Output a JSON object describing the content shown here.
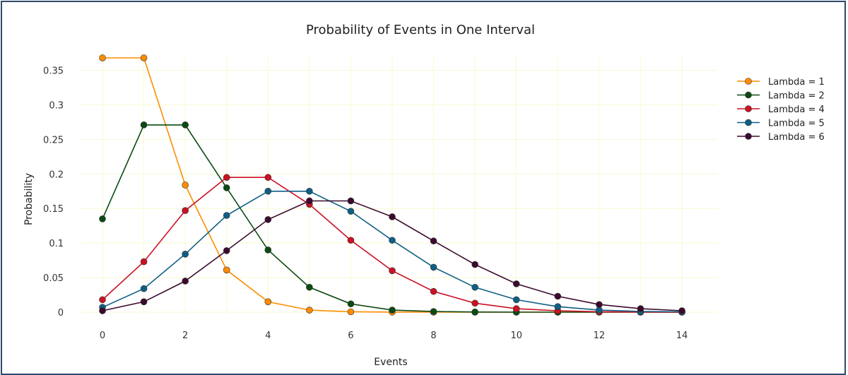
{
  "chart_data": {
    "type": "line",
    "title": "Probability of Events in One Interval",
    "xlabel": "Events",
    "ylabel": "Probability",
    "x": [
      0,
      1,
      2,
      3,
      4,
      5,
      6,
      7,
      8,
      9,
      10,
      11,
      12,
      13,
      14
    ],
    "xlim": [
      0,
      14
    ],
    "ylim": [
      0,
      0.37
    ],
    "x_ticks": [
      "0",
      "2",
      "4",
      "6",
      "8",
      "10",
      "12",
      "14"
    ],
    "x_tick_values": [
      0,
      2,
      4,
      6,
      8,
      10,
      12,
      14
    ],
    "y_ticks": [
      "0",
      "0.05",
      "0.1",
      "0.15",
      "0.2",
      "0.25",
      "0.3",
      "0.35"
    ],
    "y_tick_values": [
      0,
      0.05,
      0.1,
      0.15,
      0.2,
      0.25,
      0.3,
      0.35
    ],
    "grid": true,
    "legend_position": "top-right",
    "series": [
      {
        "name": "Lambda = 1",
        "color": "#ff8c00",
        "values": [
          0.368,
          0.368,
          0.184,
          0.061,
          0.015,
          0.003,
          0.0005,
          0.0001,
          0,
          0,
          0,
          0,
          0,
          0,
          0
        ]
      },
      {
        "name": "Lambda = 2",
        "color": "#0b4a12",
        "values": [
          0.135,
          0.271,
          0.271,
          0.18,
          0.09,
          0.036,
          0.012,
          0.003,
          0.0009,
          0.0002,
          0,
          0,
          0,
          0,
          0
        ]
      },
      {
        "name": "Lambda = 4",
        "color": "#cc1122",
        "values": [
          0.018,
          0.073,
          0.147,
          0.195,
          0.195,
          0.156,
          0.104,
          0.06,
          0.03,
          0.013,
          0.005,
          0.002,
          0.0006,
          0.0002,
          0
        ]
      },
      {
        "name": "Lambda = 5",
        "color": "#0f5f85",
        "values": [
          0.007,
          0.034,
          0.084,
          0.14,
          0.175,
          0.175,
          0.146,
          0.104,
          0.065,
          0.036,
          0.018,
          0.008,
          0.003,
          0.001,
          0.0005
        ]
      },
      {
        "name": "Lambda = 6",
        "color": "#3b0a2e",
        "values": [
          0.002,
          0.015,
          0.045,
          0.089,
          0.134,
          0.161,
          0.161,
          0.138,
          0.103,
          0.069,
          0.041,
          0.023,
          0.011,
          0.005,
          0.002
        ]
      }
    ]
  }
}
